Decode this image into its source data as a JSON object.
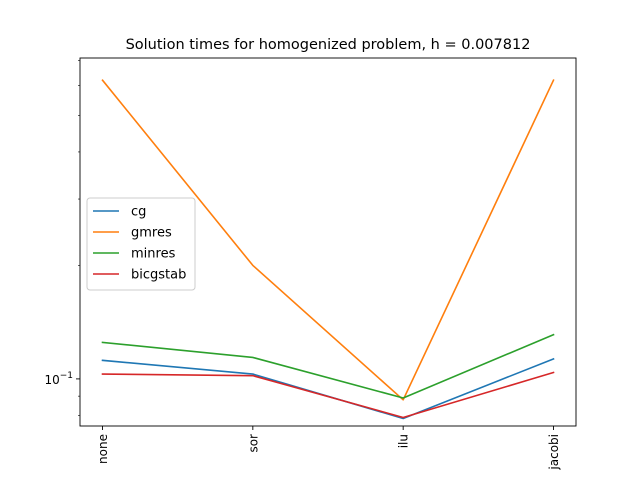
{
  "chart_data": {
    "type": "line",
    "title": "Solution times for homogenized problem, h = 0.007812",
    "xlabel": "",
    "ylabel": "",
    "yscale": "log",
    "categories": [
      "none",
      "sor",
      "ilu",
      "jacobi"
    ],
    "y_tick_labels": [
      {
        "value": 0.1,
        "base": "10",
        "exponent": "−1"
      }
    ],
    "ylim": [
      0.075,
      0.71
    ],
    "grid": false,
    "legend_position": "center-left",
    "series": [
      {
        "name": "cg",
        "color": "#1f77b4",
        "values": [
          0.112,
          0.103,
          0.0785,
          0.113
        ]
      },
      {
        "name": "gmres",
        "color": "#ff7f0e",
        "values": [
          0.62,
          0.2,
          0.088,
          0.62
        ]
      },
      {
        "name": "minres",
        "color": "#2ca02c",
        "values": [
          0.125,
          0.114,
          0.089,
          0.131
        ]
      },
      {
        "name": "bicgstab",
        "color": "#d62728",
        "values": [
          0.103,
          0.102,
          0.079,
          0.104
        ]
      }
    ]
  }
}
